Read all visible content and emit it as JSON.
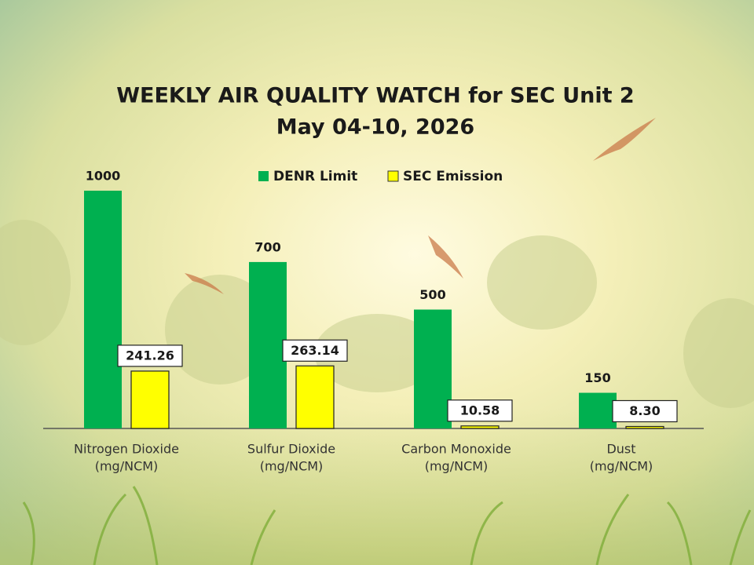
{
  "chart_data": {
    "type": "bar",
    "title": "WEEKLY AIR QUALITY WATCH for SEC Unit 2",
    "subtitle": "May 04-10, 2026",
    "categories": [
      [
        "Nitrogen Dioxide",
        "(mg/NCM)"
      ],
      [
        "Sulfur Dioxide",
        "(mg/NCM)"
      ],
      [
        "Carbon Monoxide",
        "(mg/NCM)"
      ],
      [
        "Dust",
        "(mg/NCM)"
      ]
    ],
    "series": [
      {
        "name": "DENR Limit",
        "color": "#00b050",
        "values": [
          1000,
          700,
          500,
          150
        ]
      },
      {
        "name": "SEC Emission",
        "color": "#ffff00",
        "values": [
          241.26,
          263.14,
          10.58,
          8.3
        ],
        "value_labels": [
          "241.26",
          "263.14",
          "10.58",
          "8.30"
        ]
      }
    ],
    "ylim": [
      0,
      1000
    ],
    "legend": "top"
  }
}
